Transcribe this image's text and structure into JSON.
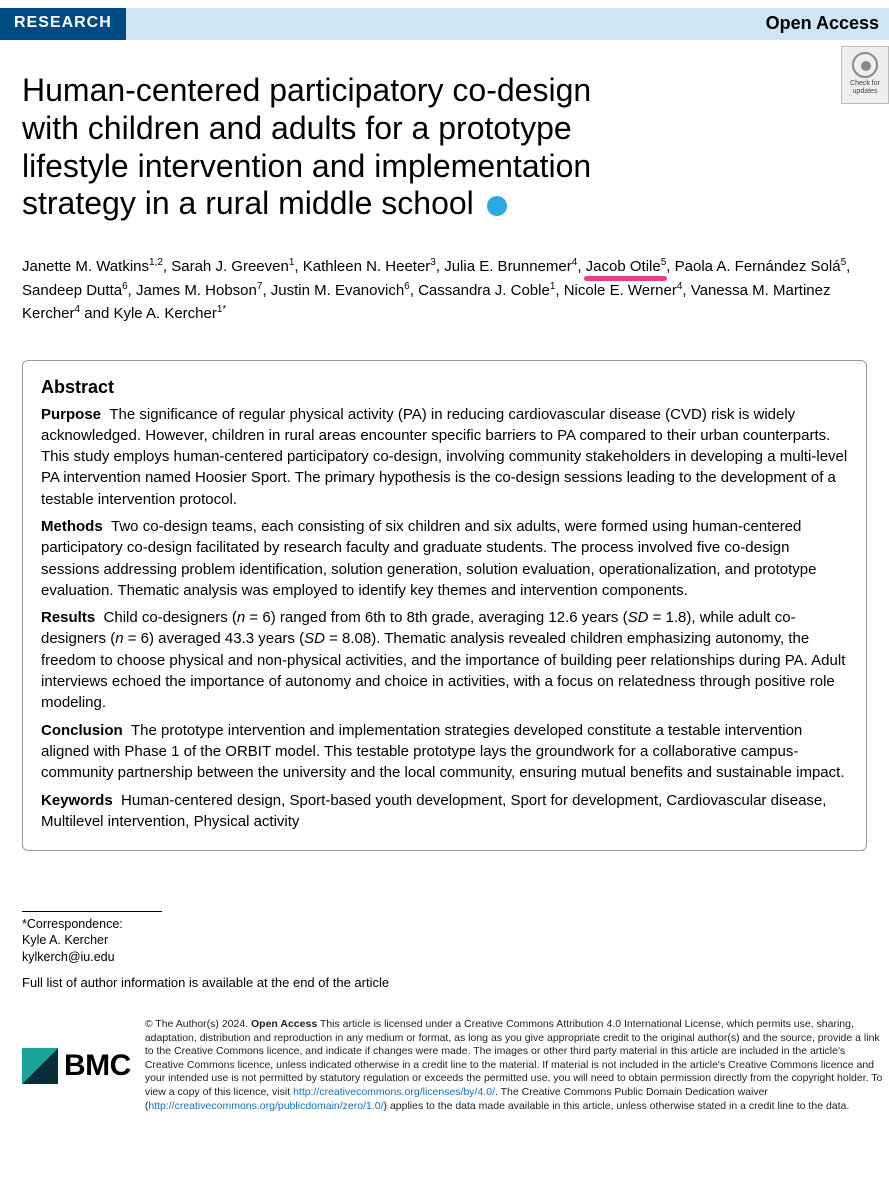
{
  "header": {
    "research_tag": "RESEARCH",
    "open_access": "Open Access"
  },
  "crossmark": {
    "line1": "Check for",
    "line2": "updates"
  },
  "title_lines": [
    "Human-centered participatory co-design",
    "with children and adults for a prototype",
    "lifestyle intervention and implementation",
    "strategy in a rural middle school"
  ],
  "authors": [
    {
      "name": "Janette M. Watkins",
      "aff": "1,2"
    },
    {
      "name": "Sarah J. Greeven",
      "aff": "1"
    },
    {
      "name": "Kathleen N. Heeter",
      "aff": "3"
    },
    {
      "name": "Julia E. Brunnemer",
      "aff": "4"
    },
    {
      "name": "Jacob Otile",
      "aff": "5",
      "highlight": true
    },
    {
      "name": "Paola A. Fernández Solá",
      "aff": "5"
    },
    {
      "name": "Sandeep Dutta",
      "aff": "6"
    },
    {
      "name": "James M. Hobson",
      "aff": "7"
    },
    {
      "name": "Justin M. Evanovich",
      "aff": "6"
    },
    {
      "name": "Cassandra J. Coble",
      "aff": "1"
    },
    {
      "name": "Nicole E. Werner",
      "aff": "4"
    },
    {
      "name": "Vanessa M. Martinez Kercher",
      "aff": "4"
    },
    {
      "name": "Kyle A. Kercher",
      "aff": "1*"
    }
  ],
  "abstract": {
    "heading": "Abstract",
    "purpose_label": "Purpose",
    "purpose_text": "The significance of regular physical activity (PA) in reducing cardiovascular disease (CVD) risk is widely acknowledged. However, children in rural areas encounter specific barriers to PA compared to their urban counterparts. This study employs human-centered participatory co-design, involving community stakeholders in developing a multi-level PA intervention named Hoosier Sport. The primary hypothesis is the co-design sessions leading to the development of a testable intervention protocol.",
    "methods_label": "Methods",
    "methods_text": "Two co-design teams, each consisting of six children and six adults, were formed using human-centered participatory co-design facilitated by research faculty and graduate students. The process involved five co-design sessions addressing problem identification, solution generation, solution evaluation, operationalization, and prototype evaluation. Thematic analysis was employed to identify key themes and intervention components.",
    "results_label": "Results",
    "results_pre": "Child co-designers (",
    "results_n1_lbl": "n",
    "results_n1_eq": " = 6) ranged from 6th to 8th grade, averaging 12.6 years (",
    "results_sd1_lbl": "SD",
    "results_sd1_eq": " = 1.8), while adult co-designers (",
    "results_n2_lbl": "n",
    "results_n2_eq": " = 6) averaged 43.3 years (",
    "results_sd2_lbl": "SD",
    "results_sd2_eq": " = 8.08). Thematic analysis revealed children emphasizing autonomy, the freedom to choose physical and non-physical activities, and the importance of building peer relationships during PA. Adult interviews echoed the importance of autonomy and choice in activities, with a focus on relatedness through positive role modeling.",
    "conclusion_label": "Conclusion",
    "conclusion_text": "The prototype intervention and implementation strategies developed constitute a testable intervention aligned with Phase 1 of the ORBIT model. This testable prototype lays the groundwork for a collaborative campus-community partnership between the university and the local community, ensuring mutual benefits and sustainable impact.",
    "keywords_label": "Keywords",
    "keywords_text": "Human-centered design, Sport-based youth development, Sport for development, Cardiovascular disease, Multilevel intervention, Physical activity"
  },
  "correspondence": {
    "star": "*Correspondence:",
    "name": "Kyle A. Kercher",
    "email": "kylkerch@iu.edu"
  },
  "full_list_note": "Full list of author information is available at the end of the article",
  "publisher": "BMC",
  "license": {
    "prefix": "© The Author(s) 2024. ",
    "oa_bold": "Open Access",
    "body1": " This article is licensed under a Creative Commons Attribution 4.0 International License, which permits use, sharing, adaptation, distribution and reproduction in any medium or format, as long as you give appropriate credit to the original author(s) and the source, provide a link to the Creative Commons licence, and indicate if changes were made. The images or other third party material in this article are included in the article's Creative Commons licence, unless indicated otherwise in a credit line to the material. If material is not included in the article's Creative Commons licence and your intended use is not permitted by statutory regulation or exceeds the permitted use, you will need to obtain permission directly from the copyright holder. To view a copy of this licence, visit ",
    "link1": "http://creativecommons.org/licenses/by/4.0/",
    "body2": ". The Creative Commons Public Domain Dedication waiver (",
    "link2": "http://creativecommons.org/publicdomain/zero/1.0/",
    "body3": ") applies to the data made available in this article, unless otherwise stated in a credit line to the data."
  },
  "colors": {
    "research_bg": "#004b82",
    "oa_bg": "#cee6f3",
    "blue_dot": "#29a9e0",
    "highlight": "#e83e8c",
    "link": "#1a6fb3"
  }
}
